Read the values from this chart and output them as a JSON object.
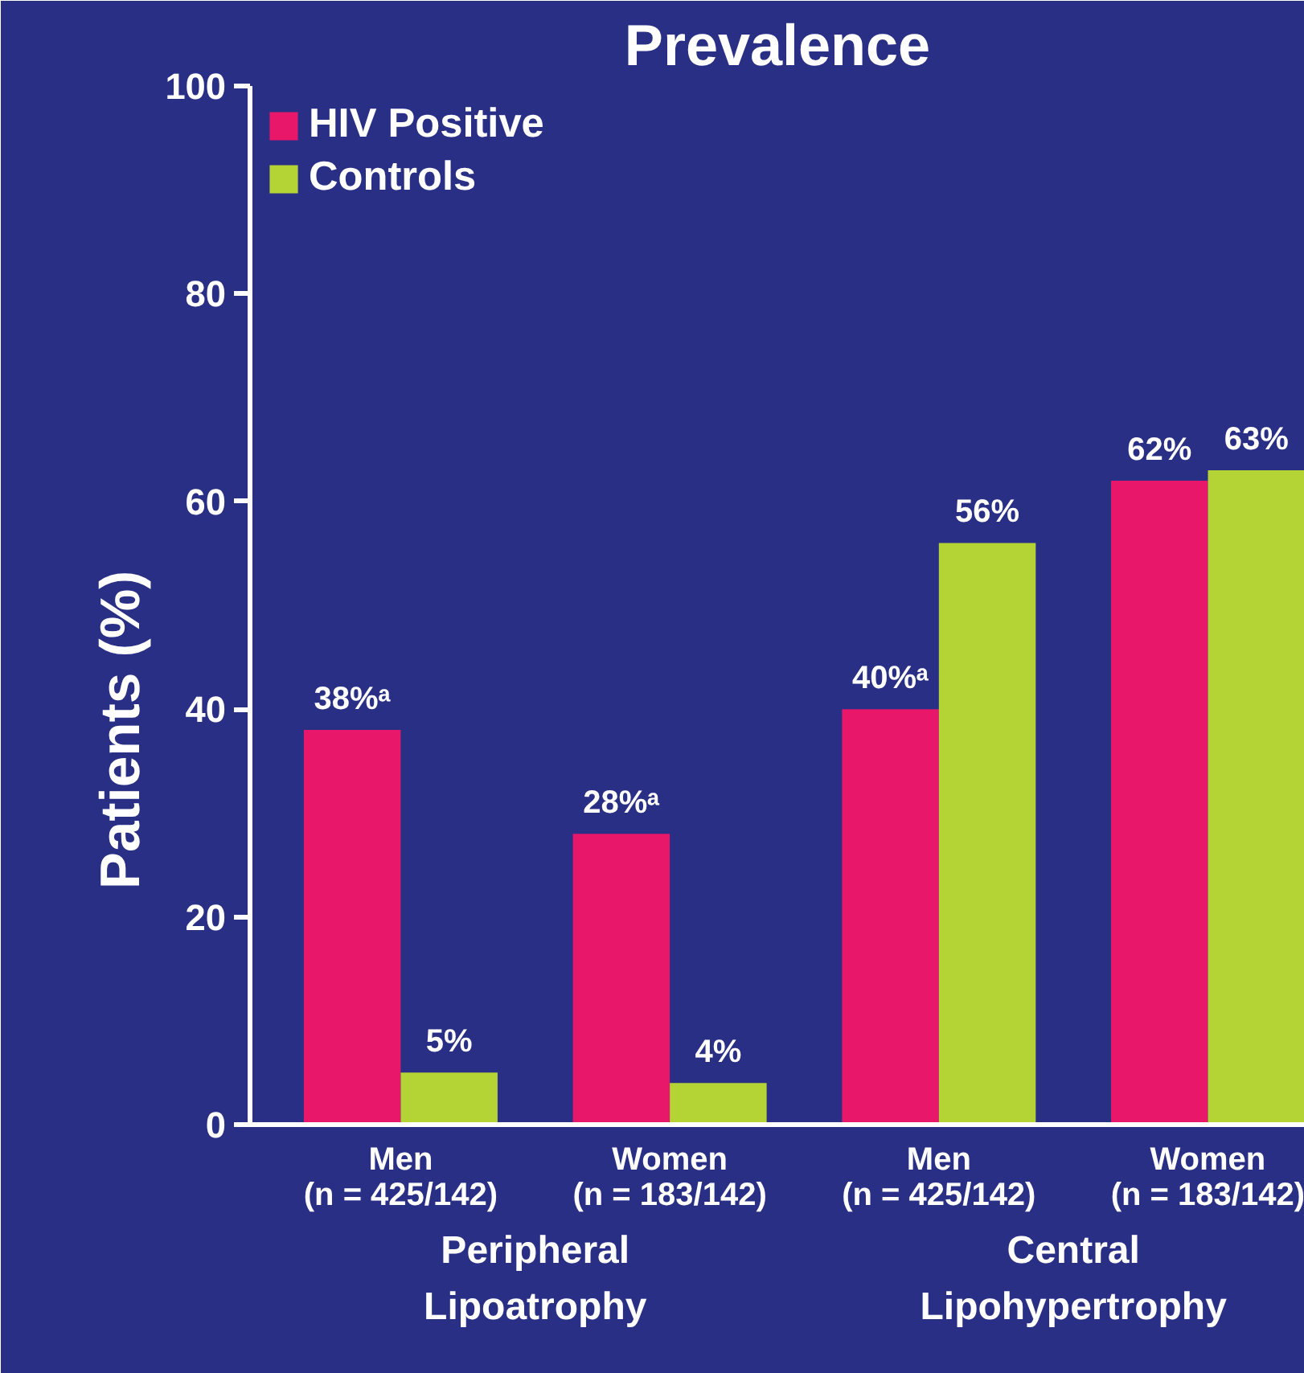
{
  "chart_data": {
    "type": "bar",
    "title": "Prevalence",
    "ylabel": "Patients (%)",
    "categories": [
      "Men\n(n = 425/142)",
      "Women\n(n = 183/142)",
      "Men\n(n = 425/142)",
      "Women\n(n = 183/142)"
    ],
    "series": [
      {
        "name": "HIV Positive",
        "color": "#e8176a",
        "values": [
          38,
          28,
          40,
          62
        ],
        "value_labels": [
          "38%ᵃ",
          "28%ᵃ",
          "40%ᵃ",
          "62%"
        ]
      },
      {
        "name": "Controls",
        "color": "#b4d335",
        "values": [
          5,
          4,
          56,
          63
        ],
        "value_labels": [
          "5%",
          "4%",
          "56%",
          "63%"
        ]
      }
    ],
    "ylim": [
      0,
      100
    ],
    "yticks": [
      0,
      20,
      40,
      60,
      80,
      100
    ],
    "grid": false,
    "legend": "top left",
    "annotations": [
      "Peripheral\nLipoatrophy",
      "Central\nLipohypertrophy"
    ]
  }
}
